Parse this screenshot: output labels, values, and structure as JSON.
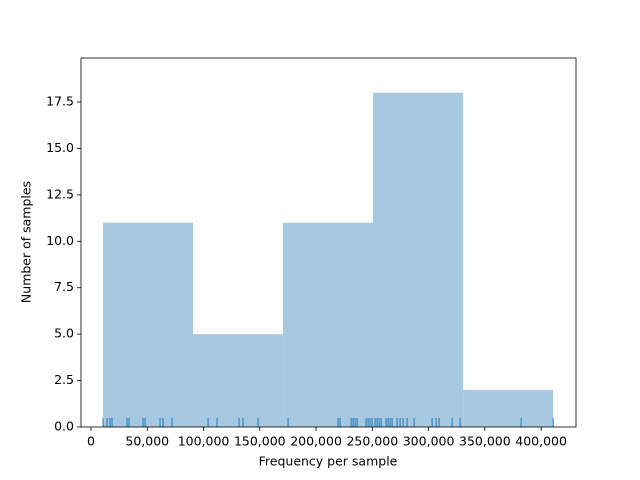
{
  "chart_data": {
    "type": "histogram",
    "xlabel": "Frequency per sample",
    "ylabel": "Number of samples",
    "bins": [
      10667,
      90667,
      170667,
      250667,
      330667,
      410667
    ],
    "values": [
      11,
      5,
      11,
      18,
      2
    ],
    "color": "#a6c9e1",
    "rug_color": "#1f77b4",
    "rug": [
      10667,
      14222,
      16889,
      18667,
      32000,
      33778,
      46222,
      48000,
      61333,
      64000,
      72000,
      104000,
      112000,
      131556,
      135111,
      148444,
      175111,
      219556,
      221333,
      231111,
      232889,
      234667,
      236444,
      244444,
      246222,
      248000,
      249778,
      252444,
      254222,
      256000,
      257778,
      262222,
      264000,
      265778,
      267556,
      272000,
      274667,
      277333,
      280889,
      287111,
      303111,
      306667,
      309333,
      320889,
      328000,
      382222,
      410667
    ],
    "xlim": [
      -8900,
      431000
    ],
    "xticks": [
      0,
      {
        "value": 50000,
        "label": "50,000"
      },
      {
        "value": 100000,
        "label": "100,000"
      },
      {
        "value": 150000,
        "label": "150,000"
      },
      {
        "value": 200000,
        "label": "200,000"
      },
      {
        "value": 250000,
        "label": "250,000"
      },
      {
        "value": 300000,
        "label": "300,000"
      },
      {
        "value": 350000,
        "label": "350,000"
      },
      {
        "value": 400000,
        "label": "400,000"
      }
    ],
    "ylim": [
      0,
      19.87
    ],
    "yticks": [
      {
        "value": 0,
        "label": "0.0"
      },
      2.5,
      {
        "value": 5,
        "label": "5.0"
      },
      7.5,
      {
        "value": 10,
        "label": "10.0"
      },
      12.5,
      {
        "value": 15,
        "label": "15.0"
      },
      17.5
    ]
  }
}
